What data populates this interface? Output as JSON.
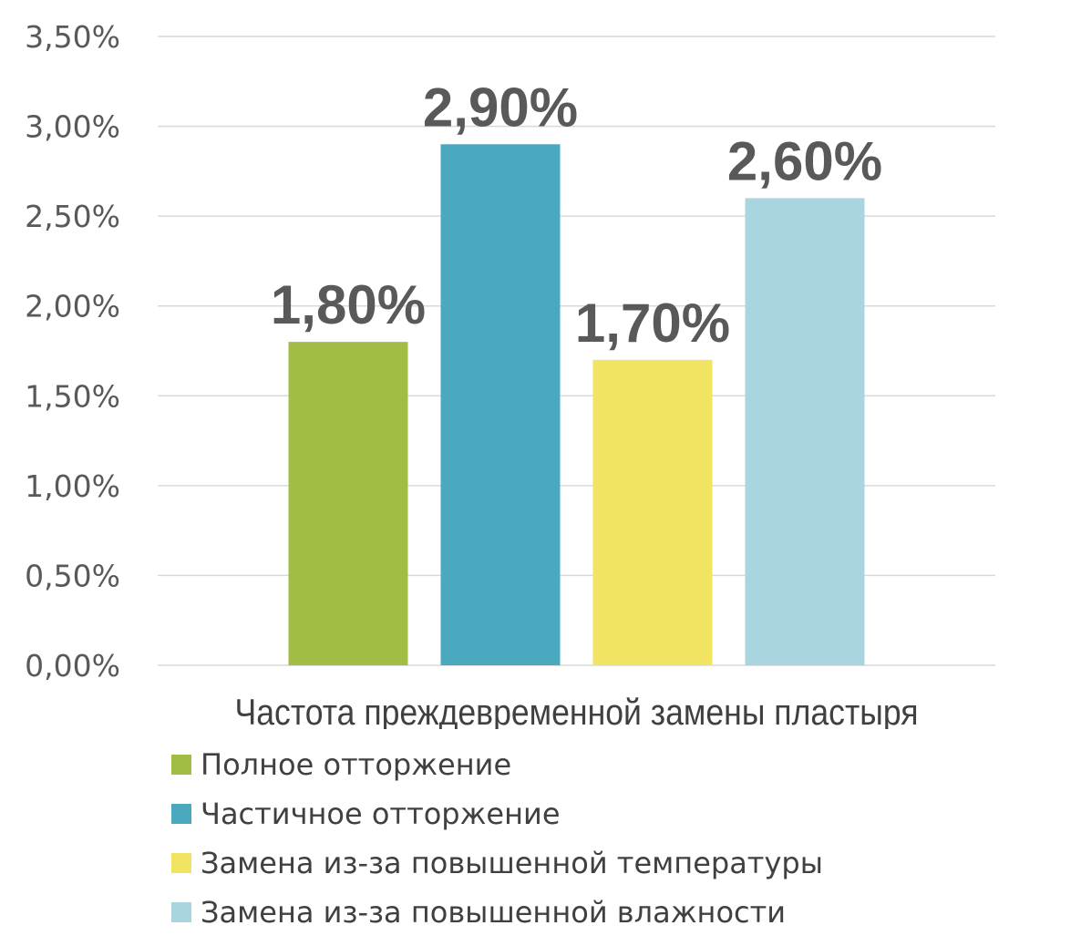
{
  "chart_data": {
    "type": "bar",
    "categories": [
      "Частота преждевременной замены пластыря"
    ],
    "series": [
      {
        "name": "Полное отторжение",
        "values": [
          1.8
        ],
        "color": "#a1bd44",
        "label": "1,80%"
      },
      {
        "name": "Частичное отторжение",
        "values": [
          2.9
        ],
        "color": "#4aa9bf",
        "label": "2,90%"
      },
      {
        "name": "Замена из-за повышенной температуры",
        "values": [
          1.7
        ],
        "color": "#f2e463",
        "label": "1,70%"
      },
      {
        "name": "Замена из-за повышенной влажности",
        "values": [
          2.6
        ],
        "color": "#a9d5e0",
        "label": "2,60%"
      }
    ],
    "y_ticks": [
      "0,00%",
      "0,50%",
      "1,00%",
      "1,50%",
      "2,00%",
      "2,50%",
      "3,00%",
      "3,50%"
    ],
    "ylim": [
      0,
      3.5
    ],
    "grid": true,
    "legend_position": "bottom"
  }
}
